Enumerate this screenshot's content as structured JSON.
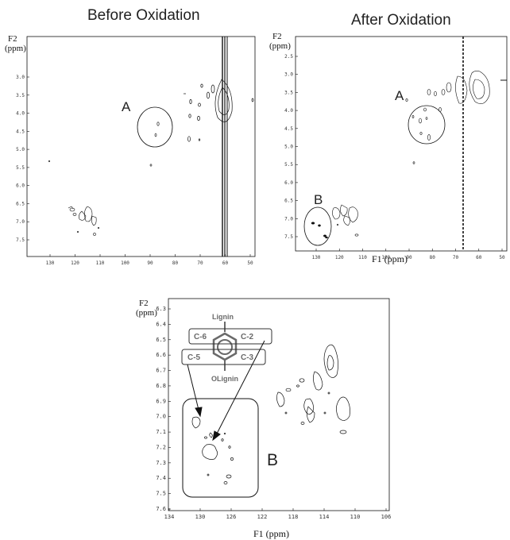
{
  "titles": {
    "before": "Before Oxidation",
    "after": "After Oxidation"
  },
  "axes": {
    "f2": "F2",
    "ppm": "(ppm)",
    "f1": "F1 (ppm)"
  },
  "panel_top_left": {
    "y_ticks": [
      "3.0",
      "3.5",
      "4.0",
      "4.5",
      "5.0",
      "5.5",
      "6.0",
      "6.5",
      "7.0",
      "7.5"
    ],
    "x_ticks": [
      "130",
      "120",
      "110",
      "100",
      "90",
      "80",
      "70",
      "60",
      "50"
    ],
    "region_label": "A"
  },
  "panel_top_right": {
    "y_ticks": [
      "2.5",
      "3.0",
      "3.5",
      "4.0",
      "4.5",
      "5.0",
      "5.5",
      "6.0",
      "6.5",
      "7.0",
      "7.5"
    ],
    "x_ticks": [
      "130",
      "120",
      "110",
      "100",
      "90",
      "80",
      "70",
      "60",
      "50"
    ],
    "region_labels": [
      "A",
      "B"
    ]
  },
  "panel_bottom": {
    "y_ticks": [
      "6.3",
      "6.4",
      "6.5",
      "6.6",
      "6.7",
      "6.8",
      "6.9",
      "7.0",
      "7.1",
      "7.2",
      "7.3",
      "7.4",
      "7.5",
      "7.6"
    ],
    "x_ticks": [
      "134",
      "130",
      "126",
      "122",
      "118",
      "114",
      "110",
      "106"
    ],
    "region_label": "B",
    "structure": {
      "top": "Lignin",
      "bottom": "OLignin",
      "c6": "C-6",
      "c2": "C-2",
      "c5": "C-5",
      "c3": "C-3"
    }
  },
  "colors": {
    "ink": "#111111",
    "structure": "#6a6a6a"
  }
}
